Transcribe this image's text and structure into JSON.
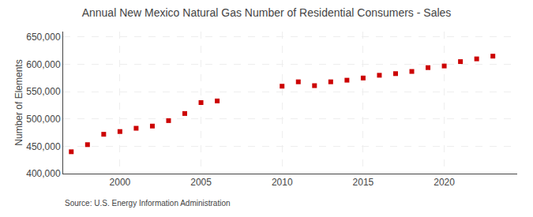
{
  "chart_data": {
    "type": "scatter",
    "title": "Annual New Mexico Natural Gas Number of Residential Consumers - Sales",
    "ylabel": "Number of Elements",
    "annotations": [
      "Source: U.S. Energy Information Administration"
    ],
    "x": [
      1997,
      1998,
      1999,
      2000,
      2001,
      2002,
      2003,
      2004,
      2005,
      2006,
      2010,
      2011,
      2012,
      2013,
      2014,
      2015,
      2016,
      2017,
      2018,
      2019,
      2020,
      2021,
      2022,
      2023
    ],
    "values": [
      440000,
      453000,
      472000,
      477000,
      483000,
      487000,
      497000,
      510000,
      530000,
      533000,
      560000,
      568000,
      561000,
      568000,
      571000,
      575000,
      580000,
      583000,
      587000,
      594000,
      597000,
      605000,
      610000,
      615000
    ],
    "color": "#cc0000",
    "marker": "square",
    "xlim": [
      1996.5,
      2024.5
    ],
    "xticks": [
      2000,
      2005,
      2010,
      2015,
      2020
    ],
    "ylim": [
      400000,
      660000
    ],
    "yticks": [
      {
        "value": 400000,
        "label": "400,000"
      },
      {
        "value": 450000,
        "label": "450,000"
      },
      {
        "value": 500000,
        "label": "500,000"
      },
      {
        "value": 550000,
        "label": "550,000"
      },
      {
        "value": 600000,
        "label": "600,000"
      },
      {
        "value": 650000,
        "label": "650,000"
      }
    ],
    "grid": true
  }
}
